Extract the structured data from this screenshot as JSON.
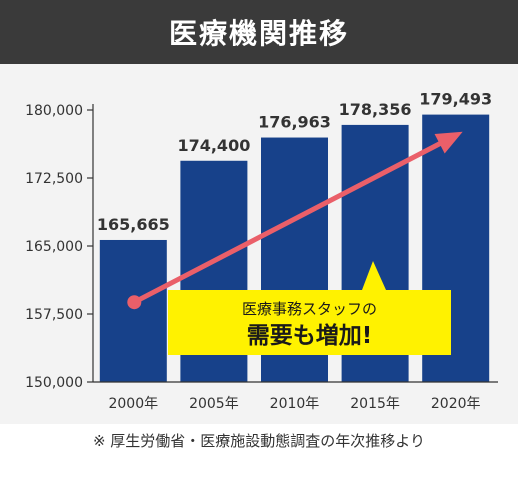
{
  "header": {
    "title": "医療機関推移"
  },
  "callout": {
    "line1": "医療事務スタッフの",
    "line2": "需要も増加!"
  },
  "source": "※ 厚生労働省・医療施設動態調査の年次推移より",
  "colors": {
    "bar": "#17418a",
    "arrow": "#ea5f69",
    "callout_bg": "#fff200",
    "header_bg": "#3a3a3a"
  },
  "chart_data": {
    "type": "bar",
    "categories": [
      "2000年",
      "2005年",
      "2010年",
      "2015年",
      "2020年"
    ],
    "values": [
      165665,
      174400,
      176963,
      178356,
      179493
    ],
    "value_labels": [
      "165,665",
      "174,400",
      "176,963",
      "178,356",
      "179,493"
    ],
    "ylim": [
      150000,
      180000
    ],
    "yticks": [
      150000,
      157500,
      165000,
      172500,
      180000
    ],
    "ytick_labels": [
      "150,000",
      "157,500",
      "165,000",
      "172,500",
      "180,000"
    ],
    "title": "医療機関推移",
    "xlabel": "",
    "ylabel": "",
    "grid": false,
    "trend_arrow": {
      "from_category": "2000年",
      "from_value": 158800,
      "to_category": "2020年",
      "to_value": 177600
    }
  }
}
